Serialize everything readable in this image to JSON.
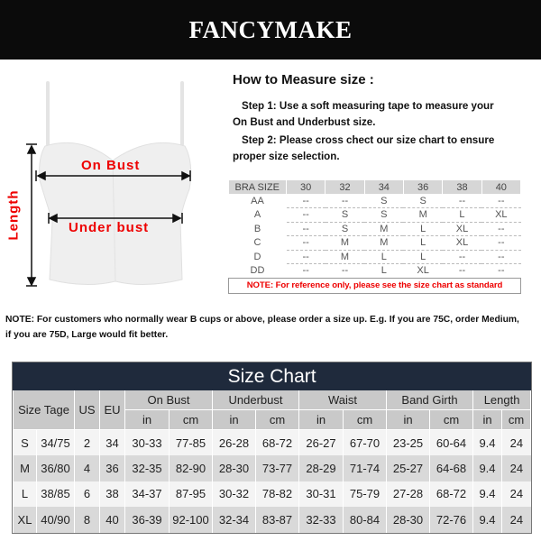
{
  "brand": "FANCYMAKE",
  "diagram": {
    "on_bust": "On Bust",
    "under_bust": "Under bust",
    "length": "Length"
  },
  "howto": {
    "title": "How to Measure size :",
    "step1": "Step 1: Use a soft measuring tape to measure your",
    "step1b": "On Bust and Underbust size.",
    "step2": "Step 2: Please cross chect our size chart to ensure",
    "step2b": "proper size selection."
  },
  "bra_table": {
    "header": [
      "BRA SIZE",
      "30",
      "32",
      "34",
      "36",
      "38",
      "40"
    ],
    "rows": [
      [
        "AA",
        "--",
        "--",
        "S",
        "S",
        "--",
        "--"
      ],
      [
        "A",
        "--",
        "S",
        "S",
        "M",
        "L",
        "XL"
      ],
      [
        "B",
        "--",
        "S",
        "M",
        "L",
        "XL",
        "--"
      ],
      [
        "C",
        "--",
        "M",
        "M",
        "L",
        "XL",
        "--"
      ],
      [
        "D",
        "--",
        "M",
        "L",
        "L",
        "--",
        "--"
      ],
      [
        "DD",
        "--",
        "--",
        "L",
        "XL",
        "--",
        "--"
      ]
    ],
    "note": "NOTE: For reference only, please see the size chart as standard"
  },
  "note": {
    "line1": "NOTE: For customers who normally wear B cups or above, please order a size up. E.g. If you are 75C, order Medium,",
    "line2": "if you are 75D, Large would fit better."
  },
  "size_chart": {
    "title": "Size Chart",
    "h1": [
      "Size Tage",
      "US",
      "EU",
      "On Bust",
      "Underbust",
      "Waist",
      "Band Girth",
      "Length"
    ],
    "units": [
      "in",
      "cm",
      "in",
      "cm",
      "in",
      "cm",
      "in",
      "cm",
      "in",
      "cm"
    ],
    "rows": [
      [
        "S",
        "34/75",
        "2",
        "34",
        "30-33",
        "77-85",
        "26-28",
        "68-72",
        "26-27",
        "67-70",
        "23-25",
        "60-64",
        "9.4",
        "24"
      ],
      [
        "M",
        "36/80",
        "4",
        "36",
        "32-35",
        "82-90",
        "28-30",
        "73-77",
        "28-29",
        "71-74",
        "25-27",
        "64-68",
        "9.4",
        "24"
      ],
      [
        "L",
        "38/85",
        "6",
        "38",
        "34-37",
        "87-95",
        "30-32",
        "78-82",
        "30-31",
        "75-79",
        "27-28",
        "68-72",
        "9.4",
        "24"
      ],
      [
        "XL",
        "40/90",
        "8",
        "40",
        "36-39",
        "92-100",
        "32-34",
        "83-87",
        "32-33",
        "80-84",
        "28-30",
        "72-76",
        "9.4",
        "24"
      ]
    ]
  }
}
